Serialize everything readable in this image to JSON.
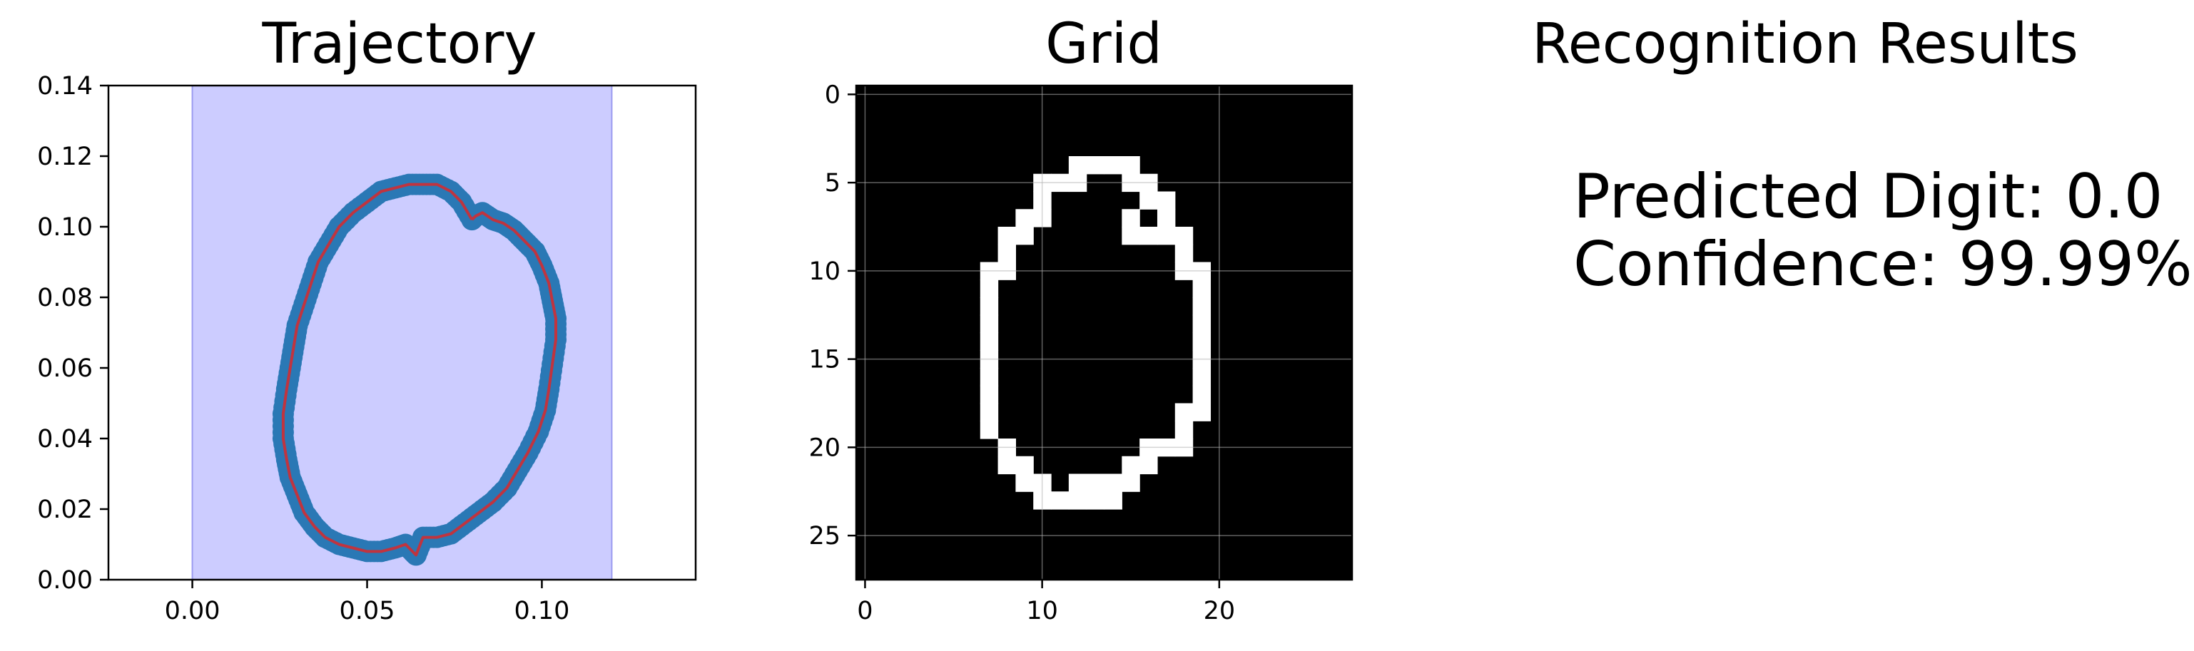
{
  "chart_data": [
    {
      "type": "scatter",
      "title": "Trajectory",
      "xlabel": "",
      "ylabel": "",
      "xlim": [
        -0.024,
        0.144
      ],
      "ylim": [
        0.0,
        0.14
      ],
      "xticks": [
        "0.00",
        "0.05",
        "0.10"
      ],
      "yticks": [
        "0.00",
        "0.02",
        "0.04",
        "0.06",
        "0.08",
        "0.10",
        "0.12",
        "0.14"
      ],
      "shaded_region": {
        "x": [
          0.0,
          0.12
        ],
        "y": [
          0.0,
          0.14
        ],
        "color": "#ccccff"
      },
      "colors": {
        "points": "#2a78b5",
        "line": "#c0343f"
      },
      "trajectory": {
        "x": [
          0.08,
          0.077,
          0.074,
          0.07,
          0.066,
          0.062,
          0.058,
          0.054,
          0.05,
          0.046,
          0.042,
          0.039,
          0.036,
          0.034,
          0.032,
          0.03,
          0.029,
          0.028,
          0.027,
          0.026,
          0.026,
          0.027,
          0.028,
          0.03,
          0.032,
          0.035,
          0.038,
          0.042,
          0.046,
          0.05,
          0.054,
          0.058,
          0.061,
          0.063,
          0.064,
          0.066,
          0.07,
          0.074,
          0.078,
          0.082,
          0.086,
          0.09,
          0.093,
          0.096,
          0.099,
          0.101,
          0.102,
          0.103,
          0.104,
          0.104,
          0.103,
          0.102,
          0.1,
          0.098,
          0.095,
          0.092,
          0.089,
          0.086,
          0.083,
          0.081,
          0.08
        ],
        "y": [
          0.102,
          0.107,
          0.11,
          0.112,
          0.112,
          0.112,
          0.111,
          0.11,
          0.107,
          0.104,
          0.1,
          0.095,
          0.09,
          0.084,
          0.078,
          0.072,
          0.066,
          0.06,
          0.054,
          0.047,
          0.04,
          0.034,
          0.029,
          0.024,
          0.019,
          0.015,
          0.012,
          0.01,
          0.009,
          0.008,
          0.008,
          0.009,
          0.01,
          0.008,
          0.007,
          0.012,
          0.012,
          0.013,
          0.016,
          0.019,
          0.022,
          0.026,
          0.031,
          0.036,
          0.042,
          0.048,
          0.054,
          0.061,
          0.068,
          0.074,
          0.079,
          0.084,
          0.089,
          0.093,
          0.096,
          0.099,
          0.101,
          0.102,
          0.104,
          0.103,
          0.102
        ]
      }
    },
    {
      "type": "heatmap",
      "title": "Grid",
      "xlim": [
        -0.5,
        27.5
      ],
      "ylim": [
        27.5,
        -0.5
      ],
      "xticks": [
        "0",
        "10",
        "20"
      ],
      "yticks": [
        "0",
        "5",
        "10",
        "15",
        "20",
        "25"
      ],
      "grid": true,
      "colors": {
        "background": "#000000",
        "pixel": "#ffffff"
      },
      "pixels_on": [
        [
          13,
          4
        ],
        [
          14,
          4
        ],
        [
          12,
          4
        ],
        [
          15,
          4
        ],
        [
          10,
          5
        ],
        [
          11,
          5
        ],
        [
          12,
          5
        ],
        [
          15,
          5
        ],
        [
          16,
          5
        ],
        [
          10,
          6
        ],
        [
          16,
          6
        ],
        [
          17,
          6
        ],
        [
          9,
          7
        ],
        [
          10,
          7
        ],
        [
          15,
          7
        ],
        [
          17,
          7
        ],
        [
          8,
          8
        ],
        [
          9,
          8
        ],
        [
          15,
          8
        ],
        [
          16,
          8
        ],
        [
          17,
          8
        ],
        [
          18,
          8
        ],
        [
          8,
          9
        ],
        [
          18,
          9
        ],
        [
          7,
          10
        ],
        [
          8,
          10
        ],
        [
          18,
          10
        ],
        [
          19,
          10
        ],
        [
          7,
          11
        ],
        [
          19,
          11
        ],
        [
          7,
          12
        ],
        [
          19,
          12
        ],
        [
          7,
          13
        ],
        [
          19,
          13
        ],
        [
          7,
          14
        ],
        [
          19,
          14
        ],
        [
          7,
          15
        ],
        [
          19,
          15
        ],
        [
          7,
          16
        ],
        [
          19,
          16
        ],
        [
          7,
          17
        ],
        [
          19,
          17
        ],
        [
          7,
          18
        ],
        [
          18,
          18
        ],
        [
          19,
          18
        ],
        [
          7,
          19
        ],
        [
          18,
          19
        ],
        [
          8,
          20
        ],
        [
          16,
          20
        ],
        [
          17,
          20
        ],
        [
          18,
          20
        ],
        [
          8,
          21
        ],
        [
          9,
          21
        ],
        [
          15,
          21
        ],
        [
          16,
          21
        ],
        [
          9,
          22
        ],
        [
          10,
          22
        ],
        [
          12,
          22
        ],
        [
          13,
          22
        ],
        [
          14,
          22
        ],
        [
          15,
          22
        ],
        [
          10,
          23
        ],
        [
          11,
          23
        ],
        [
          12,
          23
        ],
        [
          13,
          23
        ],
        [
          14,
          23
        ]
      ]
    }
  ],
  "results": {
    "title": "Recognition Results",
    "predicted_label": "Predicted Digit: 0.0",
    "confidence_label": "Confidence: 99.99%"
  }
}
